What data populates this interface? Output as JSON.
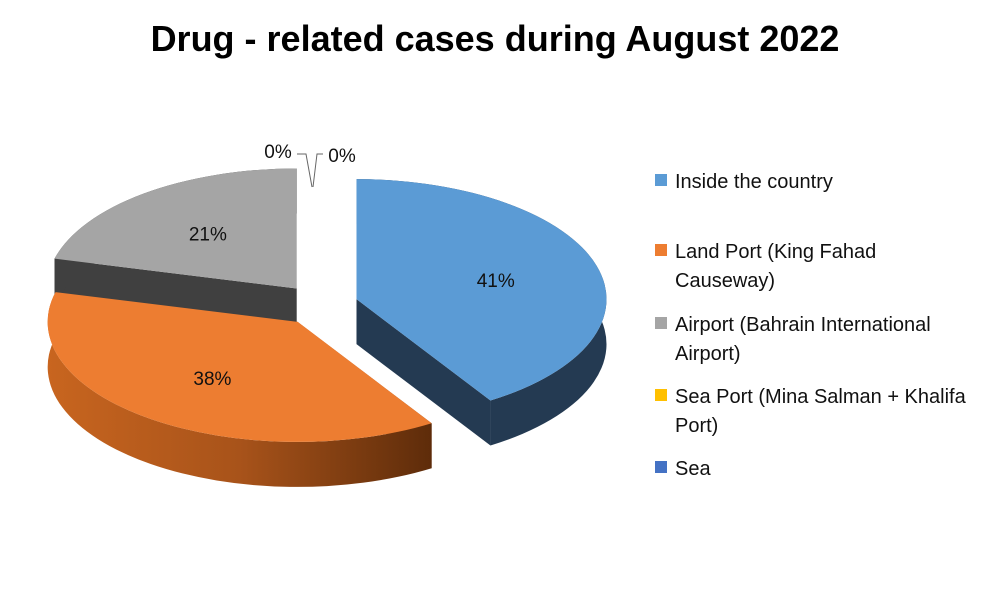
{
  "chart_data": {
    "type": "pie",
    "title": "Drug - related cases during August 2022",
    "categories": [
      "Inside the country",
      "Land Port (King Fahad Causeway)",
      "Airport (Bahrain International Airport)",
      "Sea Port (Mina Salman + Khalifa Port)",
      "Sea"
    ],
    "values": [
      41,
      38,
      21,
      0,
      0
    ],
    "labels": [
      "41%",
      "38%",
      "21%",
      "0%",
      "0%"
    ],
    "colors": [
      "#5b9bd5",
      "#ed7d31",
      "#a5a5a5",
      "#ffc000",
      "#4472c4"
    ],
    "legend": "right",
    "style": "3d-exploded"
  }
}
